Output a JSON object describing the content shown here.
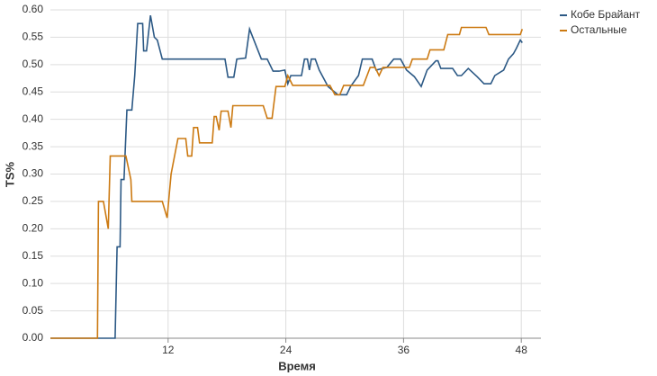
{
  "chart_data": {
    "type": "line",
    "xlabel": "Время",
    "ylabel": "TS%",
    "xlim": [
      0,
      50
    ],
    "ylim": [
      0,
      0.6
    ],
    "xticks": [
      12,
      24,
      36,
      48
    ],
    "yticks": [
      {
        "value": 0,
        "label": "0.00"
      },
      {
        "value": 0.05,
        "label": "0.05"
      },
      {
        "value": 0.1,
        "label": "0.10"
      },
      {
        "value": 0.15,
        "label": "0.15"
      },
      {
        "value": 0.2,
        "label": "0.20"
      },
      {
        "value": 0.25,
        "label": "0.25"
      },
      {
        "value": 0.3,
        "label": "0.30"
      },
      {
        "value": 0.35,
        "label": "0.35"
      },
      {
        "value": 0.4,
        "label": "0.40"
      },
      {
        "value": 0.45,
        "label": "0.45"
      },
      {
        "value": 0.5,
        "label": "0.50"
      },
      {
        "value": 0.55,
        "label": "0.55"
      },
      {
        "value": 0.6,
        "label": "0.60"
      }
    ],
    "grid": true,
    "legend": "top-right",
    "series": [
      {
        "name": "Кобе Брайант",
        "color": "#2c5985",
        "x": [
          0,
          6.6,
          6.8,
          7.1,
          7.2,
          7.5,
          7.8,
          8.3,
          8.6,
          8.9,
          9.4,
          9.5,
          9.8,
          10.2,
          10.6,
          10.9,
          11.4,
          17.8,
          18.1,
          18.7,
          19.0,
          19.9,
          20.3,
          21.5,
          22.1,
          22.7,
          23.3,
          23.9,
          24.2,
          24.5,
          25.6,
          25.9,
          26.2,
          26.4,
          26.6,
          27.0,
          27.4,
          28.3,
          29.3,
          30.2,
          30.6,
          31.4,
          31.8,
          32.8,
          33.2,
          34.3,
          35.0,
          35.7,
          36.3,
          37.1,
          37.8,
          38.4,
          39.3,
          39.5,
          39.8,
          41.0,
          41.5,
          41.9,
          42.6,
          43.5,
          44.2,
          44.9,
          45.3,
          46.2,
          46.7,
          47.2,
          47.5,
          47.9,
          48.1
        ],
        "values": [
          0,
          0,
          0.167,
          0.167,
          0.29,
          0.29,
          0.417,
          0.417,
          0.48,
          0.575,
          0.575,
          0.525,
          0.525,
          0.59,
          0.55,
          0.545,
          0.51,
          0.51,
          0.477,
          0.477,
          0.51,
          0.512,
          0.565,
          0.51,
          0.51,
          0.488,
          0.488,
          0.49,
          0.465,
          0.48,
          0.48,
          0.51,
          0.51,
          0.49,
          0.51,
          0.51,
          0.49,
          0.46,
          0.445,
          0.445,
          0.46,
          0.48,
          0.51,
          0.51,
          0.49,
          0.495,
          0.51,
          0.51,
          0.49,
          0.478,
          0.46,
          0.49,
          0.507,
          0.507,
          0.493,
          0.493,
          0.48,
          0.48,
          0.493,
          0.478,
          0.465,
          0.465,
          0.48,
          0.49,
          0.51,
          0.52,
          0.53,
          0.545,
          0.54
        ]
      },
      {
        "name": "Остальные",
        "color": "#cc7a12",
        "x": [
          0,
          4.8,
          4.9,
          5.4,
          5.9,
          6.1,
          7.7,
          8.2,
          8.3,
          11.4,
          11.9,
          12.3,
          13.0,
          13.8,
          14.0,
          14.4,
          14.6,
          15.0,
          15.2,
          16.5,
          16.7,
          16.9,
          17.2,
          17.4,
          18.1,
          18.4,
          18.6,
          21.7,
          22.1,
          22.6,
          23.0,
          23.9,
          24.2,
          24.7,
          28.5,
          29.0,
          29.5,
          29.9,
          31.9,
          32.6,
          33.1,
          33.5,
          33.9,
          36.6,
          36.9,
          38.4,
          38.7,
          40.1,
          40.5,
          41.7,
          41.9,
          44.4,
          44.7,
          47.9,
          48.1
        ],
        "values": [
          0,
          0,
          0.25,
          0.25,
          0.2,
          0.333,
          0.333,
          0.29,
          0.25,
          0.25,
          0.22,
          0.3,
          0.365,
          0.365,
          0.333,
          0.333,
          0.385,
          0.385,
          0.357,
          0.357,
          0.405,
          0.405,
          0.38,
          0.415,
          0.415,
          0.385,
          0.425,
          0.425,
          0.402,
          0.402,
          0.46,
          0.46,
          0.48,
          0.462,
          0.462,
          0.445,
          0.445,
          0.462,
          0.462,
          0.495,
          0.495,
          0.48,
          0.495,
          0.495,
          0.51,
          0.51,
          0.527,
          0.527,
          0.555,
          0.555,
          0.568,
          0.568,
          0.555,
          0.555,
          0.565
        ]
      }
    ]
  }
}
